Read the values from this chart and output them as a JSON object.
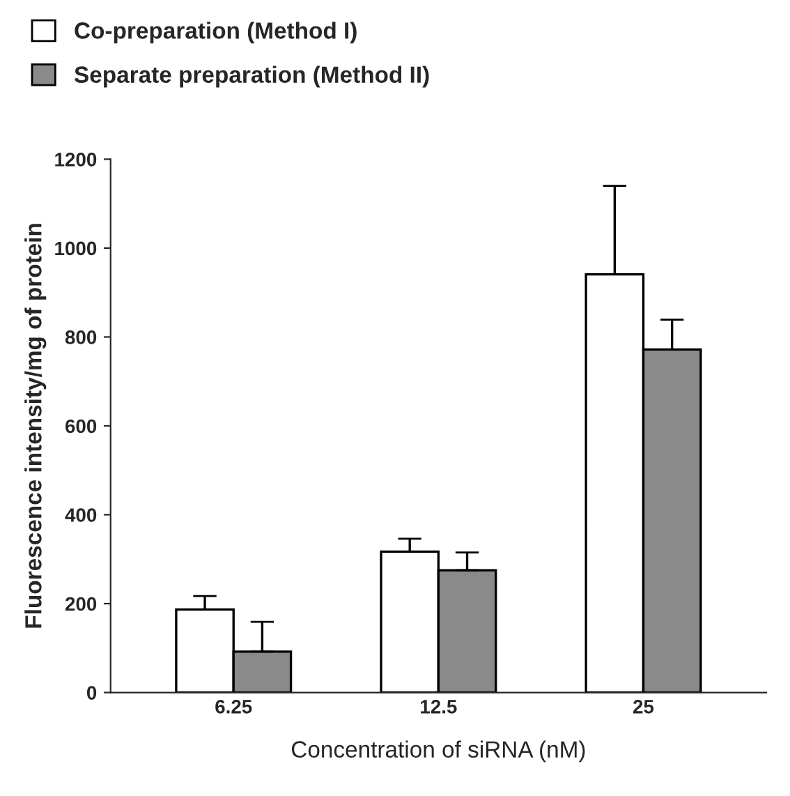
{
  "chart_data": {
    "type": "bar",
    "xlabel": "Concentration of siRNA (nM)",
    "ylabel": "Fluorescence intensity/mg of protein",
    "categories": [
      "6.25",
      "12.5",
      "25"
    ],
    "series": [
      {
        "name": "Co-preparation (Method I)",
        "color": "#ffffff",
        "values": [
          187,
          317,
          941
        ],
        "errors": [
          [
            187,
            217
          ],
          [
            317,
            346
          ],
          [
            941,
            1140
          ]
        ]
      },
      {
        "name": "Separate preparation (Method II)",
        "color": "#8a8a8a",
        "values": [
          92,
          275,
          772
        ],
        "errors": [
          [
            92,
            159
          ],
          [
            275,
            315
          ],
          [
            772,
            839
          ]
        ]
      }
    ],
    "ylim": [
      0,
      1200
    ],
    "yticks": [
      0,
      200,
      400,
      600,
      800,
      1000,
      1200
    ],
    "grid": false,
    "legend": "top left"
  }
}
